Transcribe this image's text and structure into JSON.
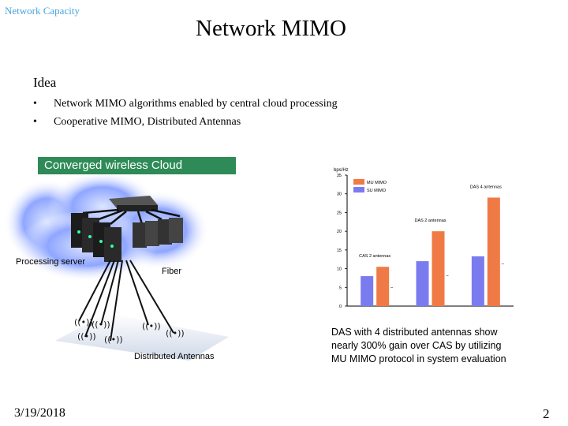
{
  "header": {
    "section_tag": "Network Capacity",
    "title": "Network MIMO"
  },
  "content": {
    "heading": "Idea",
    "bullets": [
      {
        "marker": "•",
        "text": "Network MIMO algorithms enabled by central cloud processing"
      },
      {
        "marker": "•",
        "text": "Cooperative MIMO, Distributed Antennas"
      }
    ]
  },
  "diagram": {
    "cloud_label": "Converged wireless Cloud",
    "processing_label": "Processing  server",
    "fiber_label": "Fiber",
    "antennas_label": "Distributed Antennas",
    "colors": {
      "cloud_label_bg": "#2e8b57",
      "cloud": "#5a78ff"
    }
  },
  "chart_data": {
    "type": "bar",
    "ylabel": "bps/Hz",
    "ylim": [
      0,
      35
    ],
    "yticks": [
      0,
      5,
      10,
      15,
      20,
      25,
      30,
      35
    ],
    "legend": [
      "MU MIMO",
      "SU MIMO"
    ],
    "series": [
      {
        "name": "SU MIMO",
        "values": [
          8,
          12,
          13.3
        ],
        "color": "#7b7bf0"
      },
      {
        "name": "MU MIMO",
        "values": [
          10.5,
          20,
          29
        ],
        "color": "#f07a45"
      }
    ],
    "annotations": [
      "CAS 2 antennas",
      "DAS 2 antennas",
      "DAS 4 antennas"
    ]
  },
  "caption": {
    "lines": [
      "DAS with 4 distributed antennas show",
      "nearly 300% gain over CAS by utilizing",
      "MU MIMO protocol in system evaluation"
    ]
  },
  "footer": {
    "date": "3/19/2018",
    "page": "2"
  }
}
